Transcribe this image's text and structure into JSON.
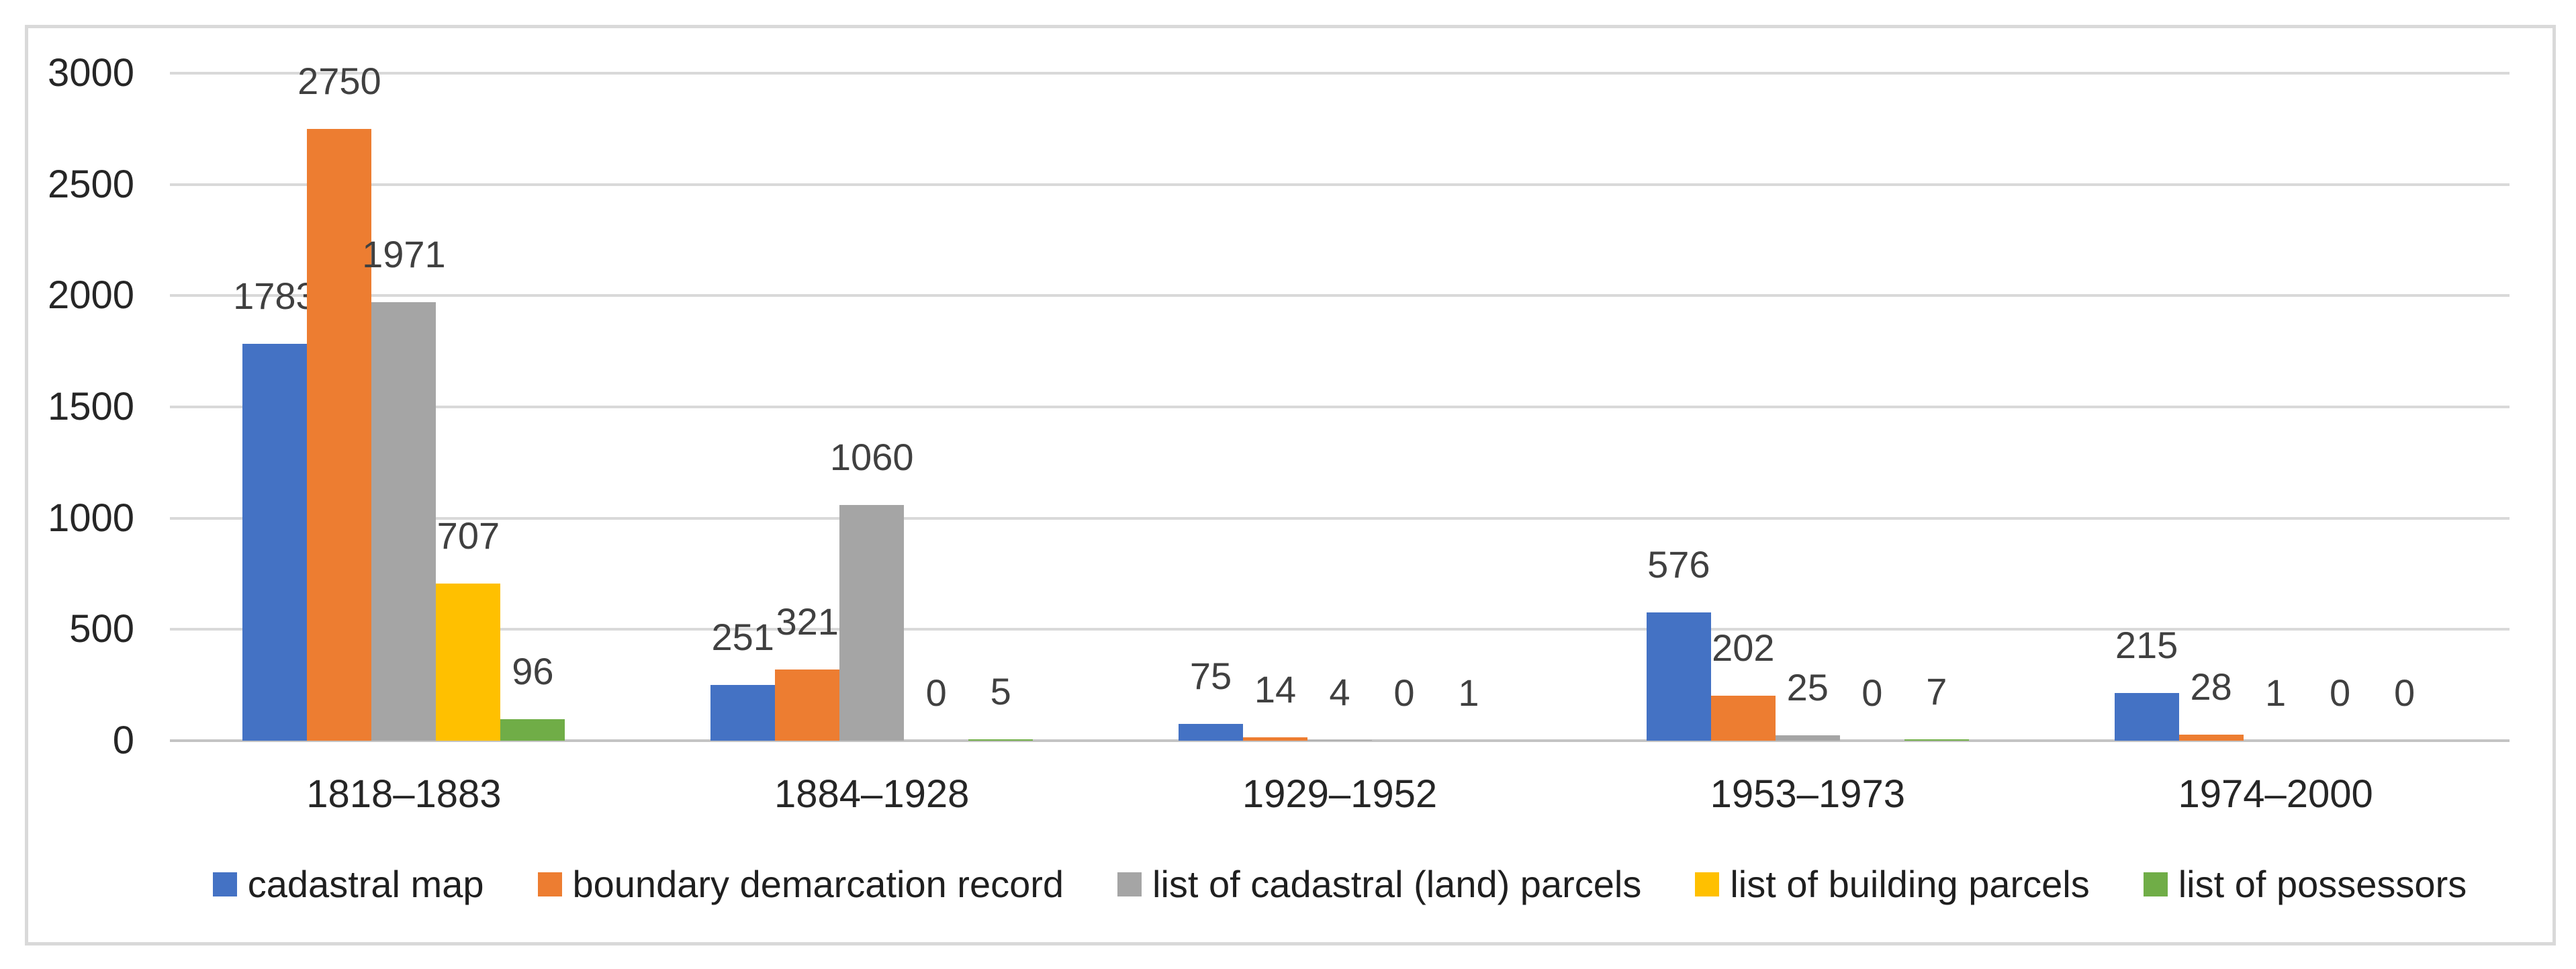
{
  "figure": {
    "background": "#ffffff",
    "border_color": "#d9d9d9",
    "gridline_color": "#d9d9d9",
    "axis_line_color": "#c4c4c4",
    "text_color": "#262626",
    "data_label_color": "#404040"
  },
  "chart_data": {
    "type": "bar",
    "title": "",
    "xlabel": "",
    "ylabel": "",
    "categories": [
      "1818–1883",
      "1884–1928",
      "1929–1952",
      "1953–1973",
      "1974–2000"
    ],
    "series": [
      {
        "name": "cadastral map",
        "color": "#4472C4",
        "values": [
          1783,
          251,
          75,
          576,
          215
        ]
      },
      {
        "name": "boundary demarcation record",
        "color": "#ED7D31",
        "values": [
          2750,
          321,
          14,
          202,
          28
        ]
      },
      {
        "name": "list of cadastral (land) parcels",
        "color": "#A5A5A5",
        "values": [
          1971,
          1060,
          4,
          25,
          1
        ]
      },
      {
        "name": "list of building parcels",
        "color": "#FFC000",
        "values": [
          707,
          0,
          0,
          0,
          0
        ]
      },
      {
        "name": "list of possessors",
        "color": "#70AD47",
        "values": [
          96,
          5,
          1,
          7,
          0
        ]
      }
    ],
    "y_ticks": [
      0,
      500,
      1000,
      1500,
      2000,
      2500,
      3000
    ],
    "ylim": [
      0,
      3000
    ],
    "grid": true,
    "data_labels": true,
    "legend_position": "bottom"
  }
}
